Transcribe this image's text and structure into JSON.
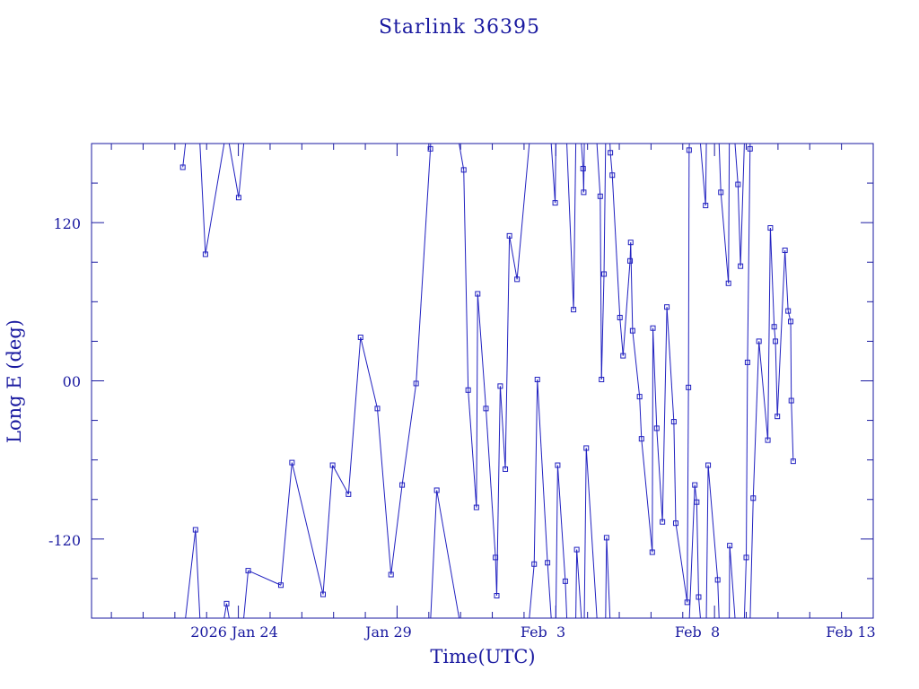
{
  "chart_data": {
    "type": "scatter",
    "title": "Starlink 36395",
    "xlabel": "Time(UTC)",
    "ylabel": "Long E (deg)",
    "x_ticks": [
      "2026 Jan 24",
      "Jan 29",
      "Feb  3",
      "Feb  8",
      "Feb 13"
    ],
    "y_ticks": [
      "120",
      "00",
      "-120"
    ],
    "ylim": [
      -180,
      180
    ],
    "xlim": [
      "2026-01-19 09:00",
      "2026-02-13 00:00"
    ],
    "grid": false,
    "colors": {
      "series": "#2020c0",
      "axes": "#1a1aa0"
    },
    "series": [
      {
        "values": [
          {
            "x": "2026-01-22 06:00",
            "y": 162
          },
          {
            "x": "2026-01-22 15:36",
            "y": -113
          },
          {
            "x": "2026-01-22 23:07",
            "y": 96
          },
          {
            "x": "2026-01-23 15:07",
            "y": -169
          },
          {
            "x": "2026-01-24 00:14",
            "y": 139
          },
          {
            "x": "2026-01-24 07:26",
            "y": -144
          },
          {
            "x": "2026-01-25 08:09",
            "y": -155
          },
          {
            "x": "2026-01-25 16:33",
            "y": -62
          },
          {
            "x": "2026-01-26 16:04",
            "y": -162
          },
          {
            "x": "2026-01-26 23:16",
            "y": -64
          },
          {
            "x": "2026-01-27 11:16",
            "y": -86
          },
          {
            "x": "2026-01-27 20:24",
            "y": 33
          },
          {
            "x": "2026-01-28 09:07",
            "y": -21
          },
          {
            "x": "2026-01-28 19:26",
            "y": -147
          },
          {
            "x": "2026-01-29 03:50",
            "y": -79
          },
          {
            "x": "2026-01-29 14:24",
            "y": -2
          },
          {
            "x": "2026-01-30 01:12",
            "y": 176
          },
          {
            "x": "2026-01-30 06:00",
            "y": -83
          },
          {
            "x": "2026-01-31 02:24",
            "y": 160
          },
          {
            "x": "2026-01-31 05:45",
            "y": -7
          },
          {
            "x": "2026-01-31 12:00",
            "y": -96
          },
          {
            "x": "2026-01-31 12:57",
            "y": 66
          },
          {
            "x": "2026-01-31 19:12",
            "y": -21
          },
          {
            "x": "2026-02-01 02:24",
            "y": -134
          },
          {
            "x": "2026-02-01 03:21",
            "y": -163
          },
          {
            "x": "2026-02-01 06:00",
            "y": -4
          },
          {
            "x": "2026-02-01 09:50",
            "y": -67
          },
          {
            "x": "2026-02-01 12:57",
            "y": 110
          },
          {
            "x": "2026-02-01 18:43",
            "y": 77
          },
          {
            "x": "2026-02-02 07:40",
            "y": -139
          },
          {
            "x": "2026-02-02 10:04",
            "y": 1
          },
          {
            "x": "2026-02-02 17:45",
            "y": -138
          },
          {
            "x": "2026-02-02 23:31",
            "y": 135
          },
          {
            "x": "2026-02-03 01:26",
            "y": -64
          },
          {
            "x": "2026-02-03 07:12",
            "y": -152
          },
          {
            "x": "2026-02-03 13:26",
            "y": 54
          },
          {
            "x": "2026-02-03 15:50",
            "y": -128
          },
          {
            "x": "2026-02-03 20:38",
            "y": 161
          },
          {
            "x": "2026-02-03 21:07",
            "y": 143
          },
          {
            "x": "2026-02-03 23:02",
            "y": -51
          },
          {
            "x": "2026-02-04 09:36",
            "y": 140
          },
          {
            "x": "2026-02-04 10:33",
            "y": 1
          },
          {
            "x": "2026-02-04 12:28",
            "y": 81
          },
          {
            "x": "2026-02-04 14:24",
            "y": -119
          },
          {
            "x": "2026-02-04 17:16",
            "y": 173
          },
          {
            "x": "2026-02-04 18:43",
            "y": 156
          },
          {
            "x": "2026-02-05 00:28",
            "y": 48
          },
          {
            "x": "2026-02-05 02:52",
            "y": 19
          },
          {
            "x": "2026-02-05 08:09",
            "y": 91
          },
          {
            "x": "2026-02-05 08:38",
            "y": 105
          },
          {
            "x": "2026-02-05 10:04",
            "y": 38
          },
          {
            "x": "2026-02-05 15:21",
            "y": -12
          },
          {
            "x": "2026-02-05 16:48",
            "y": -44
          },
          {
            "x": "2026-02-06 00:57",
            "y": -130
          },
          {
            "x": "2026-02-06 01:26",
            "y": 40
          },
          {
            "x": "2026-02-06 04:19",
            "y": -36
          },
          {
            "x": "2026-02-06 08:38",
            "y": -107
          },
          {
            "x": "2026-02-06 12:00",
            "y": 56
          },
          {
            "x": "2026-02-06 17:16",
            "y": -31
          },
          {
            "x": "2026-02-06 18:43",
            "y": -108
          },
          {
            "x": "2026-02-07 03:21",
            "y": -168
          },
          {
            "x": "2026-02-07 04:19",
            "y": -5
          },
          {
            "x": "2026-02-07 04:48",
            "y": 175
          },
          {
            "x": "2026-02-07 09:07",
            "y": -79
          },
          {
            "x": "2026-02-07 10:33",
            "y": -92
          },
          {
            "x": "2026-02-07 12:00",
            "y": -164
          },
          {
            "x": "2026-02-07 17:16",
            "y": 133
          },
          {
            "x": "2026-02-07 19:12",
            "y": -64
          },
          {
            "x": "2026-02-08 02:24",
            "y": -151
          },
          {
            "x": "2026-02-08 04:48",
            "y": 143
          },
          {
            "x": "2026-02-08 10:33",
            "y": 74
          },
          {
            "x": "2026-02-08 11:31",
            "y": -125
          },
          {
            "x": "2026-02-08 17:45",
            "y": 149
          },
          {
            "x": "2026-02-08 19:40",
            "y": 87
          },
          {
            "x": "2026-02-09 00:00",
            "y": -134
          },
          {
            "x": "2026-02-09 00:57",
            "y": 14
          },
          {
            "x": "2026-02-09 02:52",
            "y": 176
          },
          {
            "x": "2026-02-09 05:16",
            "y": -89
          },
          {
            "x": "2026-02-09 09:36",
            "y": 30
          },
          {
            "x": "2026-02-09 16:19",
            "y": -45
          },
          {
            "x": "2026-02-09 18:14",
            "y": 116
          },
          {
            "x": "2026-02-09 21:07",
            "y": 41
          },
          {
            "x": "2026-02-09 22:04",
            "y": 30
          },
          {
            "x": "2026-02-09 23:31",
            "y": -27
          },
          {
            "x": "2026-02-10 05:16",
            "y": 99
          },
          {
            "x": "2026-02-10 07:40",
            "y": 53
          },
          {
            "x": "2026-02-10 09:36",
            "y": 45
          },
          {
            "x": "2026-02-10 10:04",
            "y": -15
          },
          {
            "x": "2026-02-10 11:31",
            "y": -61
          }
        ]
      }
    ]
  }
}
